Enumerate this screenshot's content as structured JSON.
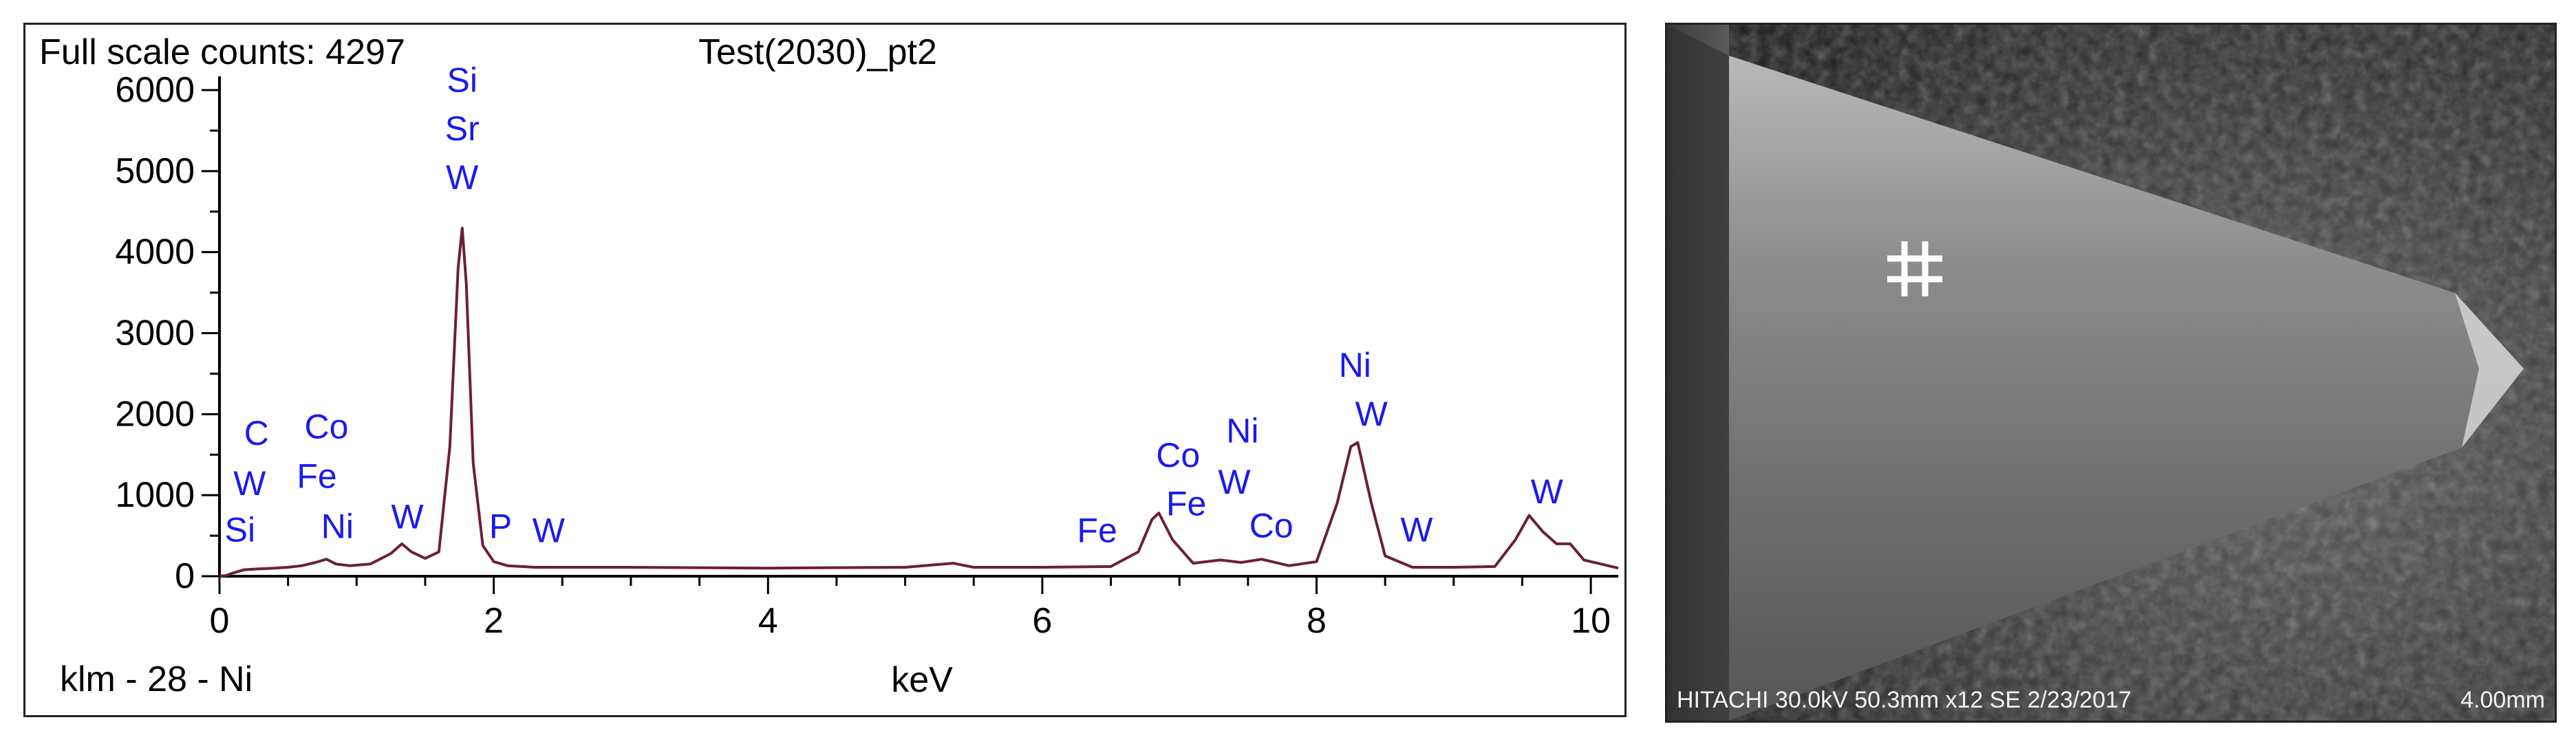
{
  "chart_data": {
    "type": "line",
    "header_left": "Full scale counts: 4297",
    "title": "Test(2030)_pt2",
    "footer_left": "klm - 28 - Ni",
    "xlabel": "keV",
    "ylabel": "",
    "xlim": [
      0,
      10.2
    ],
    "ylim": [
      0,
      6000
    ],
    "x_ticks": [
      0,
      2,
      4,
      6,
      8,
      10
    ],
    "y_ticks": [
      0,
      1000,
      2000,
      3000,
      4000,
      5000,
      6000
    ],
    "line_color": "#6b1f3a",
    "label_color": "#1a1aee",
    "series": [
      {
        "x": [
          0,
          0.05,
          0.1,
          0.18,
          0.28,
          0.4,
          0.5,
          0.6,
          0.7,
          0.78,
          0.85,
          0.95,
          1.1,
          1.25,
          1.33,
          1.4,
          1.5,
          1.6,
          1.68,
          1.74,
          1.77,
          1.8,
          1.85,
          1.92,
          2.0,
          2.1,
          2.3,
          2.5,
          3.0,
          4.0,
          5.0,
          5.35,
          5.5,
          6.0,
          6.5,
          6.7,
          6.8,
          6.85,
          6.95,
          7.1,
          7.3,
          7.45,
          7.6,
          7.8,
          8.0,
          8.15,
          8.25,
          8.3,
          8.4,
          8.5,
          8.7,
          9.0,
          9.3,
          9.45,
          9.55,
          9.65,
          9.75,
          9.85,
          9.95,
          10.2
        ],
        "y": [
          0,
          10,
          40,
          80,
          90,
          100,
          110,
          130,
          170,
          210,
          150,
          130,
          150,
          280,
          400,
          300,
          220,
          300,
          1600,
          3800,
          4297,
          3600,
          1400,
          380,
          180,
          130,
          110,
          110,
          110,
          100,
          110,
          160,
          110,
          110,
          120,
          300,
          700,
          780,
          450,
          160,
          200,
          170,
          210,
          130,
          180,
          900,
          1600,
          1650,
          900,
          250,
          110,
          110,
          120,
          450,
          750,
          550,
          400,
          400,
          200,
          100
        ]
      }
    ],
    "annotations": [
      {
        "text": "Si",
        "x": 0.15,
        "y": 430
      },
      {
        "text": "W",
        "x": 0.22,
        "y": 1000
      },
      {
        "text": "C",
        "x": 0.27,
        "y": 1620
      },
      {
        "text": "Fe",
        "x": 0.71,
        "y": 1090
      },
      {
        "text": "Co",
        "x": 0.78,
        "y": 1700
      },
      {
        "text": "Ni",
        "x": 0.86,
        "y": 470
      },
      {
        "text": "W",
        "x": 1.37,
        "y": 590
      },
      {
        "text": "W",
        "x": 1.77,
        "y": 4780
      },
      {
        "text": "Sr",
        "x": 1.77,
        "y": 5380
      },
      {
        "text": "Si",
        "x": 1.77,
        "y": 5980
      },
      {
        "text": "P",
        "x": 2.05,
        "y": 470
      },
      {
        "text": "W",
        "x": 2.4,
        "y": 420
      },
      {
        "text": "Fe",
        "x": 6.4,
        "y": 420
      },
      {
        "text": "Fe",
        "x": 7.05,
        "y": 750
      },
      {
        "text": "Co",
        "x": 6.99,
        "y": 1350
      },
      {
        "text": "W",
        "x": 7.4,
        "y": 1020
      },
      {
        "text": "Ni",
        "x": 7.46,
        "y": 1650
      },
      {
        "text": "Co",
        "x": 7.67,
        "y": 480
      },
      {
        "text": "Ni",
        "x": 8.28,
        "y": 2460
      },
      {
        "text": "W",
        "x": 8.4,
        "y": 1860
      },
      {
        "text": "W",
        "x": 8.73,
        "y": 430
      },
      {
        "text": "W",
        "x": 9.68,
        "y": 900
      }
    ]
  },
  "sem_image": {
    "footer_left": "HITACHI 30.0kV 50.3mm x12 SE  2/23/2017",
    "footer_right": "4.00mm"
  }
}
